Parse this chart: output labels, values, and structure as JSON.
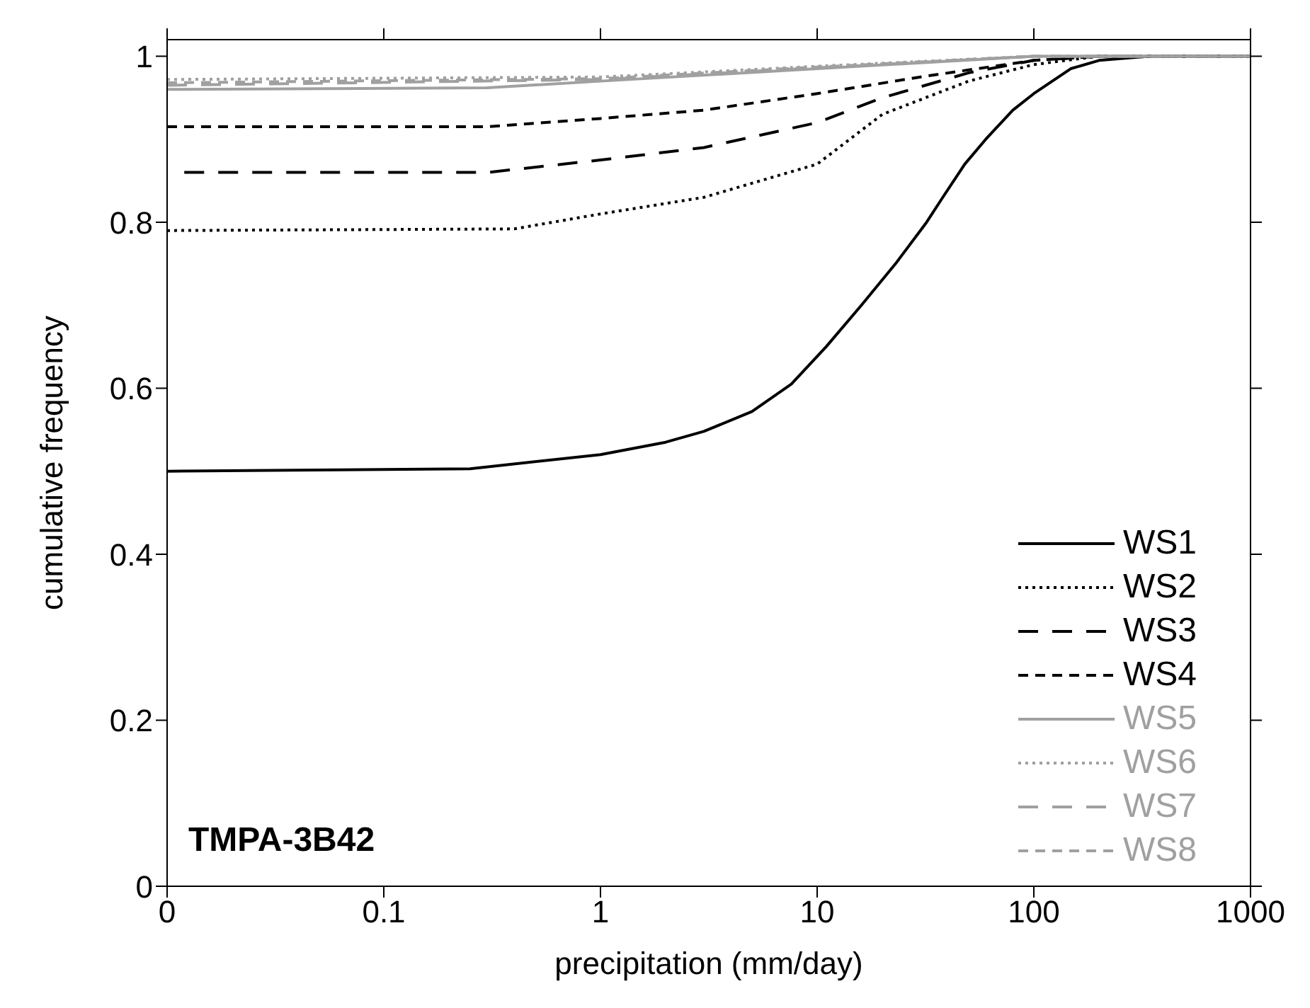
{
  "chart_data": {
    "type": "line",
    "xlabel": "precipitation (mm/day)",
    "ylabel": "cumulative frequency",
    "annotations": [
      "TMPA-3B42"
    ],
    "log": "x",
    "xlim": [
      0.01,
      1000
    ],
    "xticks": [
      {
        "value": 0.01,
        "label": "0"
      },
      0.1,
      1,
      10,
      100,
      1000
    ],
    "ylim": [
      0,
      1.02
    ],
    "yticks": [
      0,
      0.2,
      0.4,
      0.6,
      0.8,
      1
    ],
    "legend": "bottom right",
    "marker": "none",
    "series": [
      {
        "name": "WS1",
        "color": "#000000",
        "line_style": "solid",
        "x": [
          0.01,
          0.25,
          1,
          2,
          3,
          5,
          7.6,
          11,
          16,
          23,
          32,
          38,
          48,
          60,
          80,
          100,
          148,
          200,
          340,
          1000
        ],
        "values": [
          0.5,
          0.503,
          0.52,
          0.535,
          0.548,
          0.572,
          0.605,
          0.65,
          0.7,
          0.75,
          0.8,
          0.83,
          0.87,
          0.9,
          0.935,
          0.955,
          0.985,
          0.995,
          1,
          1
        ]
      },
      {
        "name": "WS2",
        "color": "#000000",
        "line_style": "dotted",
        "x": [
          0.01,
          0.4,
          1,
          3,
          10,
          20,
          50,
          100,
          200,
          1000
        ],
        "values": [
          0.79,
          0.792,
          0.81,
          0.83,
          0.87,
          0.93,
          0.97,
          0.99,
          1,
          1
        ]
      },
      {
        "name": "WS3",
        "color": "#000000",
        "line_style": "dashed",
        "x": [
          0.012,
          0.3,
          1,
          3,
          10,
          20,
          50,
          100,
          200,
          1000
        ],
        "values": [
          0.86,
          0.86,
          0.875,
          0.89,
          0.92,
          0.95,
          0.98,
          0.995,
          1,
          1
        ]
      },
      {
        "name": "WS4",
        "color": "#000000",
        "line_style": "dashed",
        "x": [
          0.01,
          0.3,
          1,
          3,
          10,
          30,
          100,
          200,
          1000
        ],
        "values": [
          0.915,
          0.915,
          0.925,
          0.935,
          0.955,
          0.975,
          0.995,
          1,
          1
        ]
      },
      {
        "name": "WS5",
        "color": "#a0a0a0",
        "line_style": "solid",
        "x": [
          0.01,
          0.3,
          1,
          10,
          100,
          1000
        ],
        "values": [
          0.96,
          0.962,
          0.97,
          0.985,
          1,
          1
        ]
      },
      {
        "name": "WS6",
        "color": "#a0a0a0",
        "line_style": "dotted",
        "x": [
          0.01,
          1,
          10,
          100,
          1000
        ],
        "values": [
          0.972,
          0.975,
          0.988,
          1,
          1
        ]
      },
      {
        "name": "WS7",
        "color": "#a0a0a0",
        "line_style": "dashed",
        "x": [
          0.01,
          1,
          10,
          100,
          1000
        ],
        "values": [
          0.965,
          0.972,
          0.986,
          1,
          1
        ]
      },
      {
        "name": "WS8",
        "color": "#a0a0a0",
        "line_style": "dashed",
        "x": [
          0.01,
          1,
          10,
          100,
          1000
        ],
        "values": [
          0.968,
          0.973,
          0.987,
          1,
          1
        ]
      }
    ]
  }
}
